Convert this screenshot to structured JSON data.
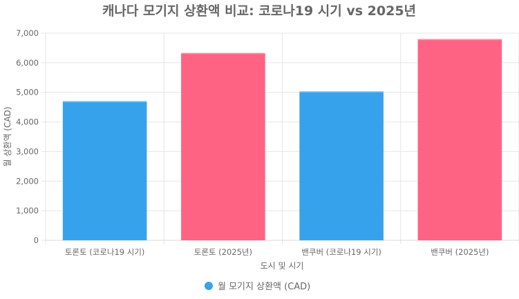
{
  "chart_data": {
    "type": "bar",
    "title": "캐나다 모기지 상환액 비교: 코로나19 시기 vs 2025년",
    "xlabel": "도시 및 시기",
    "ylabel": "월 상환액 (CAD)",
    "categories": [
      "토론토 (코로나19 시기)",
      "토론토 (2025년)",
      "밴쿠버 (코로나19 시기)",
      "밴쿠버 (2025년)"
    ],
    "series": [
      {
        "name": "월 모기지 상환액 (CAD)",
        "values": [
          4700,
          6330,
          5030,
          6800
        ],
        "colors": [
          "#36a2eb",
          "#ff6384",
          "#36a2eb",
          "#ff6384"
        ]
      }
    ],
    "ylim": [
      0,
      7000
    ],
    "yticks": [
      0,
      1000,
      2000,
      3000,
      4000,
      5000,
      6000,
      7000
    ],
    "ytick_labels": [
      "0",
      "1,000",
      "2,000",
      "3,000",
      "4,000",
      "5,000",
      "6,000",
      "7,000"
    ],
    "grid": true,
    "legend_position": "bottom",
    "legend_marker_color": "#36a2eb"
  }
}
